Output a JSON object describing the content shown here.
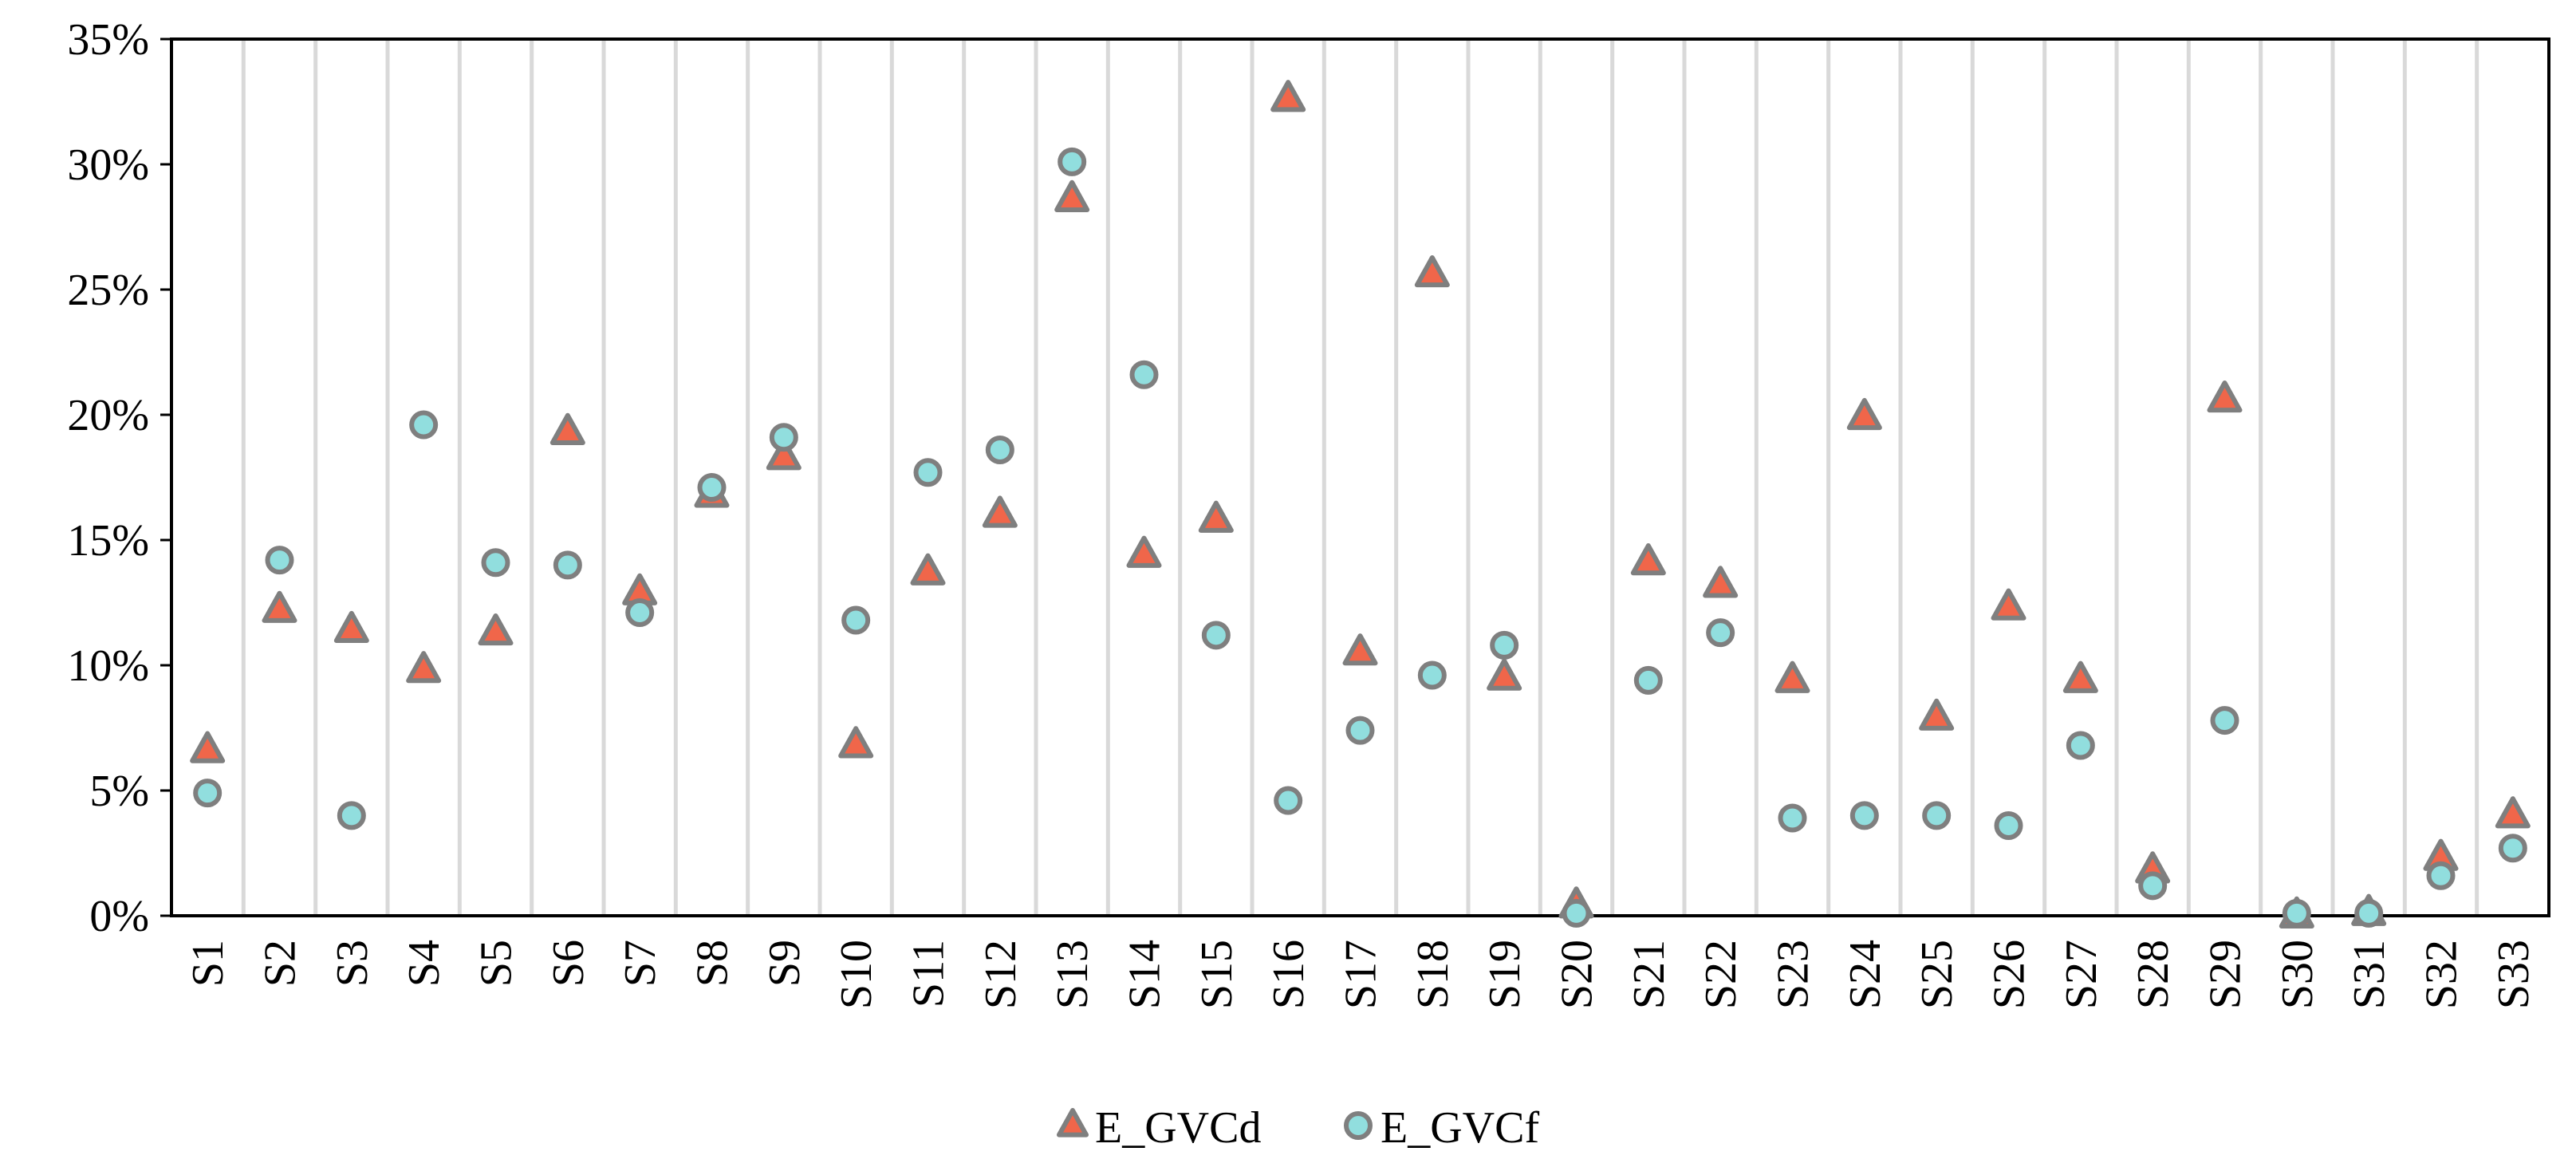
{
  "chart_data": {
    "type": "scatter",
    "title": "",
    "xlabel": "",
    "ylabel": "",
    "categories": [
      "S1",
      "S2",
      "S3",
      "S4",
      "S5",
      "S6",
      "S7",
      "S8",
      "S9",
      "S10",
      "S11",
      "S12",
      "S13",
      "S14",
      "S15",
      "S16",
      "S17",
      "S18",
      "S19",
      "S20",
      "S21",
      "S22",
      "S23",
      "S24",
      "S25",
      "S26",
      "S27",
      "S28",
      "S29",
      "S30",
      "S31",
      "S32",
      "S33"
    ],
    "ylim": [
      0,
      0.35
    ],
    "yticks": [
      0,
      0.05,
      0.1,
      0.15,
      0.2,
      0.25,
      0.3,
      0.35
    ],
    "ytick_labels": [
      "0%",
      "5%",
      "10%",
      "15%",
      "20%",
      "25%",
      "30%",
      "35%"
    ],
    "grid": "vertical separators between categories",
    "legend_position": "bottom-center",
    "series": [
      {
        "name": "E_GVCd",
        "marker": "triangle",
        "fill": "#f0664a",
        "stroke": "#7f7f7f",
        "values": [
          0.066,
          0.122,
          0.114,
          0.098,
          0.113,
          0.193,
          0.129,
          0.168,
          0.183,
          0.068,
          0.137,
          0.16,
          0.286,
          0.144,
          0.158,
          0.326,
          0.105,
          0.256,
          0.095,
          0.004,
          0.141,
          0.132,
          0.094,
          0.199,
          0.079,
          0.123,
          0.094,
          0.018,
          0.206,
          0.0,
          0.001,
          0.023,
          0.04
        ]
      },
      {
        "name": "E_GVCf",
        "marker": "circle",
        "fill": "#91dede",
        "stroke": "#7f7f7f",
        "values": [
          0.049,
          0.142,
          0.04,
          0.196,
          0.141,
          0.14,
          0.121,
          0.171,
          0.191,
          0.118,
          0.177,
          0.186,
          0.301,
          0.216,
          0.112,
          0.046,
          0.074,
          0.096,
          0.108,
          0.001,
          0.094,
          0.113,
          0.039,
          0.04,
          0.04,
          0.036,
          0.068,
          0.012,
          0.078,
          0.001,
          0.001,
          0.016,
          0.027
        ]
      }
    ]
  }
}
